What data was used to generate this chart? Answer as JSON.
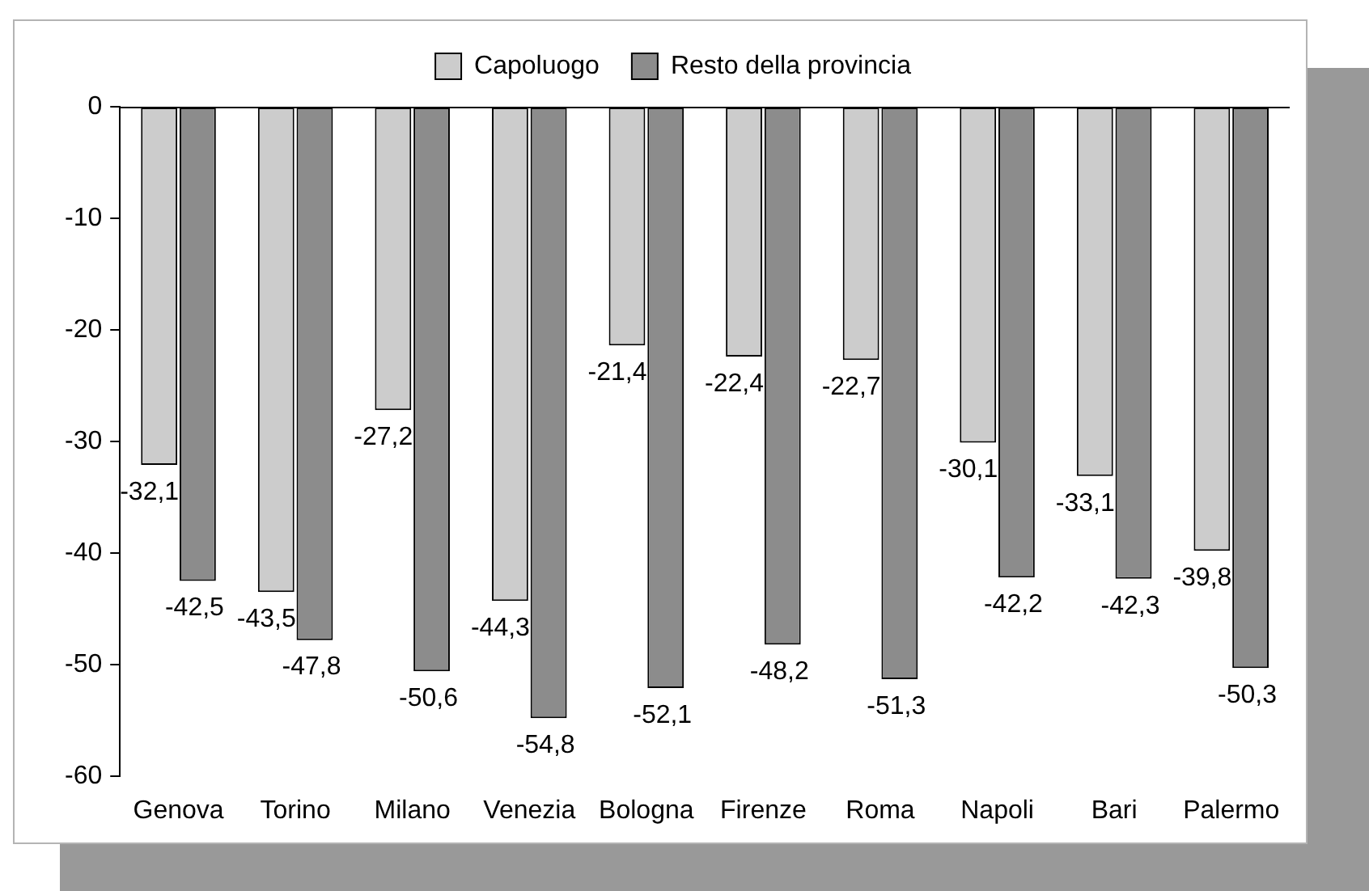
{
  "chart_data": {
    "type": "bar",
    "categories": [
      "Genova",
      "Torino",
      "Milano",
      "Venezia",
      "Bologna",
      "Firenze",
      "Roma",
      "Napoli",
      "Bari",
      "Palermo"
    ],
    "series": [
      {
        "name": "Capoluogo",
        "color": "#cccccc",
        "values": [
          -32.1,
          -43.5,
          -27.2,
          -44.3,
          -21.4,
          -22.4,
          -22.7,
          -30.1,
          -33.1,
          -39.8
        ],
        "value_labels": [
          "-32,1",
          "-43,5",
          "-27,2",
          "-44,3",
          "-21,4",
          "-22,4",
          "-22,7",
          "-30,1",
          "-33,1",
          "-39,8"
        ]
      },
      {
        "name": "Resto della provincia",
        "color": "#8c8c8c",
        "values": [
          -42.5,
          -47.8,
          -50.6,
          -54.8,
          -52.1,
          -48.2,
          -51.3,
          -42.2,
          -42.3,
          -50.3
        ],
        "value_labels": [
          "-42,5",
          "-47,8",
          "-50,6",
          "-54,8",
          "-52,1",
          "-48,2",
          "-51,3",
          "-42,2",
          "-42,3",
          "-50,3"
        ]
      }
    ],
    "ylim": [
      -60,
      0
    ],
    "yticks": [
      -60,
      -50,
      -40,
      -30,
      -20,
      -10,
      0
    ],
    "legend": "top",
    "grid": false
  }
}
